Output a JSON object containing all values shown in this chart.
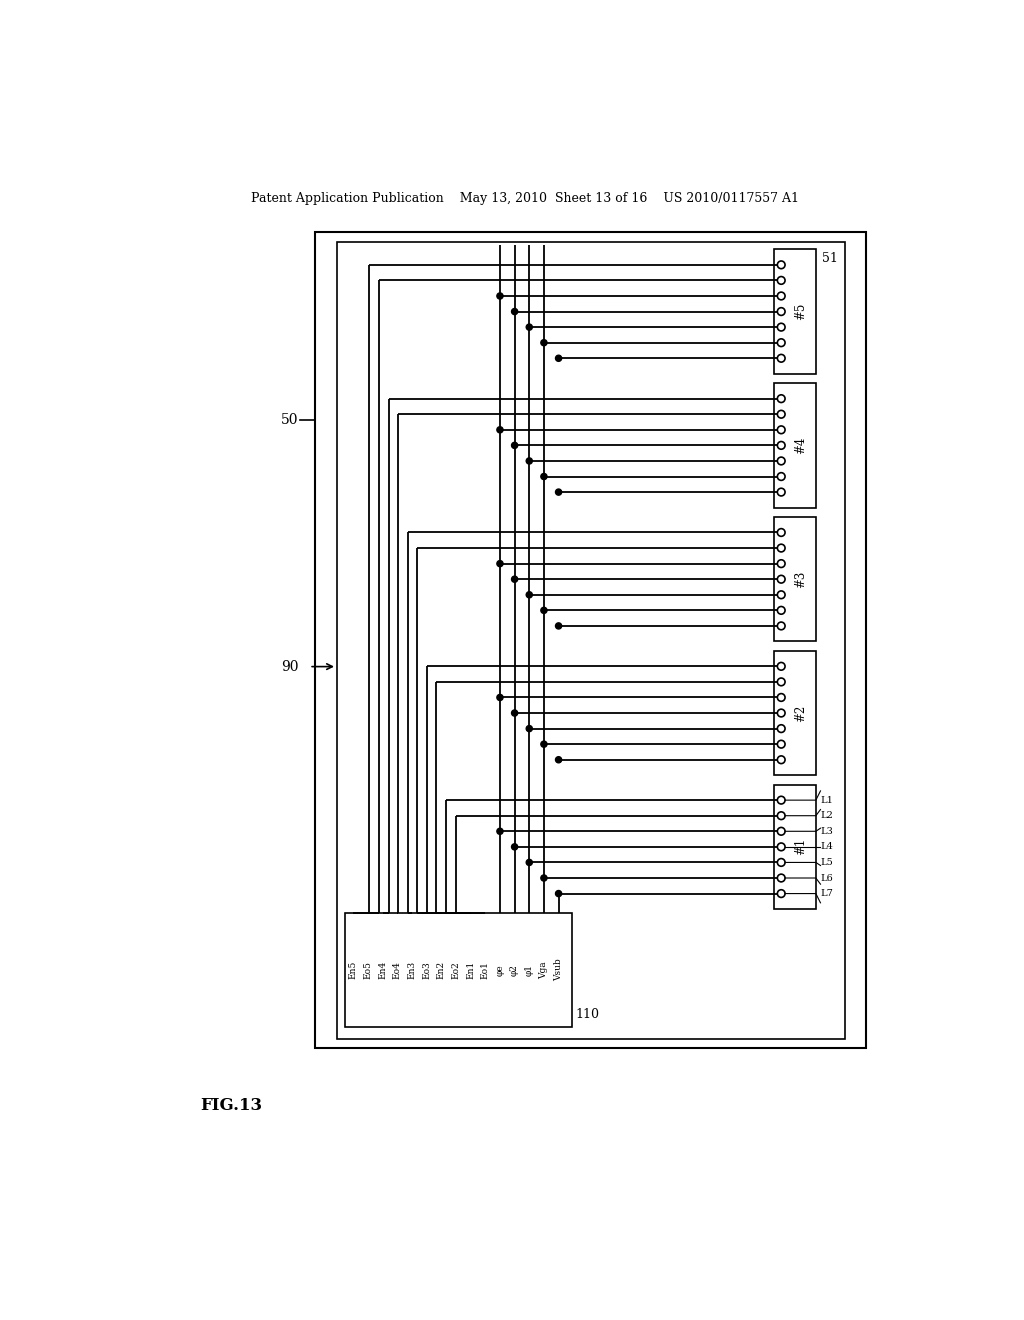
{
  "bg_color": "#ffffff",
  "header": "Patent Application Publication    May 13, 2010  Sheet 13 of 16    US 2010/0117557 A1",
  "fig_label": "FIG.13",
  "signals": [
    "En5",
    "Eo5",
    "En4",
    "Eo4",
    "En3",
    "Eo3",
    "En2",
    "Eo2",
    "En1",
    "Eo1",
    "φe",
    "φ2",
    "φ1",
    "Vga",
    "Vsub"
  ],
  "chip_labels": [
    "#1",
    "#2",
    "#3",
    "#4",
    "#5"
  ],
  "line_labels": [
    "L1",
    "L2",
    "L3",
    "L4",
    "L5",
    "L6",
    "L7"
  ],
  "num_chips": 5,
  "dots_per_chip": 7
}
